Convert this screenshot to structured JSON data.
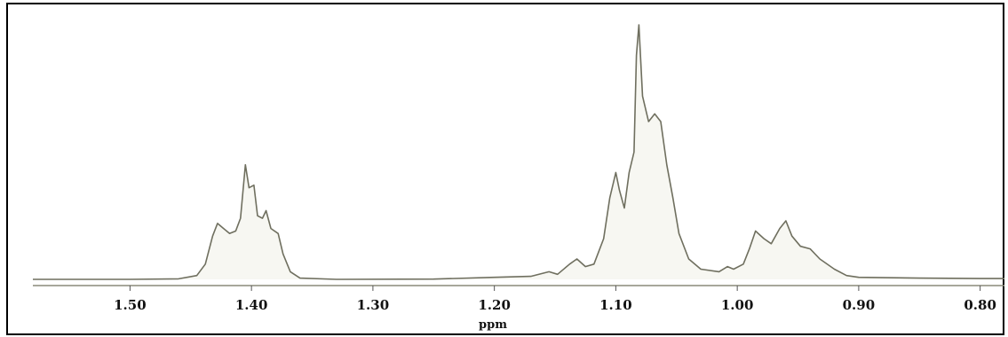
{
  "chart_data": {
    "type": "line",
    "title": "",
    "xlabel": "ppm",
    "ylabel": "",
    "x_reversed": true,
    "xlim": [
      1.58,
      0.78
    ],
    "ylim": [
      0,
      100
    ],
    "grid": false,
    "legend": "none",
    "xticks": [
      {
        "value": 1.5,
        "label": "1.50"
      },
      {
        "value": 1.4,
        "label": "1.40"
      },
      {
        "value": 1.3,
        "label": "1.30"
      },
      {
        "value": 1.2,
        "label": "1.20"
      },
      {
        "value": 1.1,
        "label": "1.10"
      },
      {
        "value": 1.0,
        "label": "1.00"
      },
      {
        "value": 0.9,
        "label": "0.90"
      },
      {
        "value": 0.8,
        "label": "0.80"
      }
    ],
    "series": [
      {
        "color": "#6f6f5f",
        "points": [
          [
            1.58,
            0
          ],
          [
            1.5,
            0
          ],
          [
            1.46,
            0.2
          ],
          [
            1.445,
            1.5
          ],
          [
            1.438,
            6
          ],
          [
            1.432,
            17
          ],
          [
            1.428,
            22
          ],
          [
            1.423,
            20
          ],
          [
            1.418,
            18
          ],
          [
            1.413,
            19
          ],
          [
            1.409,
            24
          ],
          [
            1.405,
            45
          ],
          [
            1.402,
            36
          ],
          [
            1.398,
            37
          ],
          [
            1.395,
            25
          ],
          [
            1.391,
            24
          ],
          [
            1.388,
            27
          ],
          [
            1.384,
            20
          ],
          [
            1.378,
            18
          ],
          [
            1.374,
            10
          ],
          [
            1.368,
            3
          ],
          [
            1.36,
            0.5
          ],
          [
            1.33,
            0
          ],
          [
            1.25,
            0.1
          ],
          [
            1.2,
            0.8
          ],
          [
            1.17,
            1.2
          ],
          [
            1.155,
            3
          ],
          [
            1.148,
            2
          ],
          [
            1.138,
            6
          ],
          [
            1.132,
            8
          ],
          [
            1.125,
            5
          ],
          [
            1.118,
            6
          ],
          [
            1.11,
            16
          ],
          [
            1.105,
            32
          ],
          [
            1.1,
            42
          ],
          [
            1.097,
            35
          ],
          [
            1.093,
            28
          ],
          [
            1.089,
            42
          ],
          [
            1.085,
            50
          ],
          [
            1.083,
            88
          ],
          [
            1.081,
            100
          ],
          [
            1.078,
            72
          ],
          [
            1.073,
            62
          ],
          [
            1.068,
            65
          ],
          [
            1.063,
            62
          ],
          [
            1.058,
            45
          ],
          [
            1.053,
            32
          ],
          [
            1.048,
            18
          ],
          [
            1.04,
            8
          ],
          [
            1.03,
            4
          ],
          [
            1.015,
            3
          ],
          [
            1.008,
            5
          ],
          [
            1.003,
            4
          ],
          [
            0.995,
            6
          ],
          [
            0.99,
            12
          ],
          [
            0.985,
            19
          ],
          [
            0.978,
            16
          ],
          [
            0.972,
            14
          ],
          [
            0.965,
            20
          ],
          [
            0.96,
            23
          ],
          [
            0.955,
            17
          ],
          [
            0.948,
            13
          ],
          [
            0.94,
            12
          ],
          [
            0.932,
            8
          ],
          [
            0.92,
            4
          ],
          [
            0.91,
            1.5
          ],
          [
            0.9,
            0.8
          ],
          [
            0.85,
            0.5
          ],
          [
            0.8,
            0.3
          ],
          [
            0.78,
            0.3
          ]
        ]
      }
    ]
  }
}
